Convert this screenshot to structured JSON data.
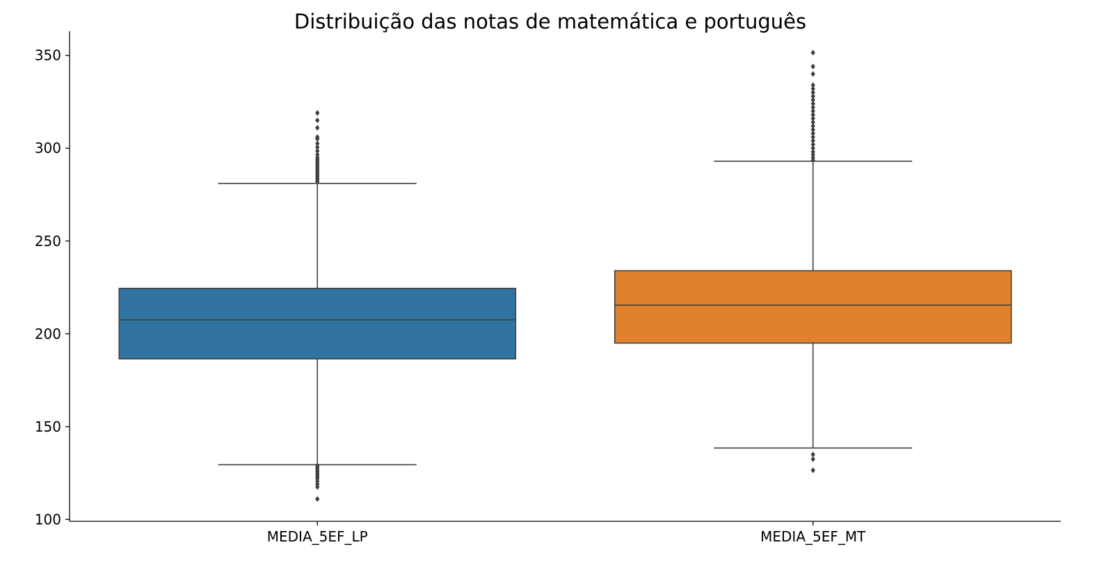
{
  "chart_data": {
    "type": "box",
    "title": "Distribuição das notas de matemática e português",
    "xlabel": "",
    "ylabel": "",
    "ylim": [
      99,
      363
    ],
    "yticks": [
      100,
      150,
      200,
      250,
      300,
      350
    ],
    "grid": false,
    "legend": "none",
    "categories": [
      "MEDIA_5EF_LP",
      "MEDIA_5EF_MT"
    ],
    "boxes": [
      {
        "category": "MEDIA_5EF_LP",
        "color": "#3274a1",
        "whisker_low": 129.5,
        "q1": 186.5,
        "median": 207.5,
        "q3": 224.5,
        "whisker_high": 281,
        "outliers": [
          111,
          117.5,
          119,
          120.5,
          122,
          123,
          124,
          125,
          126,
          127,
          128,
          129,
          282,
          283,
          284,
          285,
          286,
          287,
          288,
          289,
          290,
          291,
          292,
          293,
          294,
          295,
          296.5,
          298.5,
          300.5,
          302.5,
          305,
          306,
          311,
          315,
          319
        ]
      },
      {
        "category": "MEDIA_5EF_MT",
        "color": "#e1812c",
        "whisker_low": 138.5,
        "q1": 195,
        "median": 215.5,
        "q3": 234,
        "whisker_high": 293,
        "outliers": [
          126.5,
          132.5,
          135,
          293.5,
          295,
          296.5,
          298,
          300,
          302,
          304,
          306,
          308,
          310,
          312,
          314,
          316,
          318,
          320,
          322,
          324,
          326,
          328,
          330,
          332,
          334,
          340,
          344,
          351.5
        ]
      }
    ]
  }
}
